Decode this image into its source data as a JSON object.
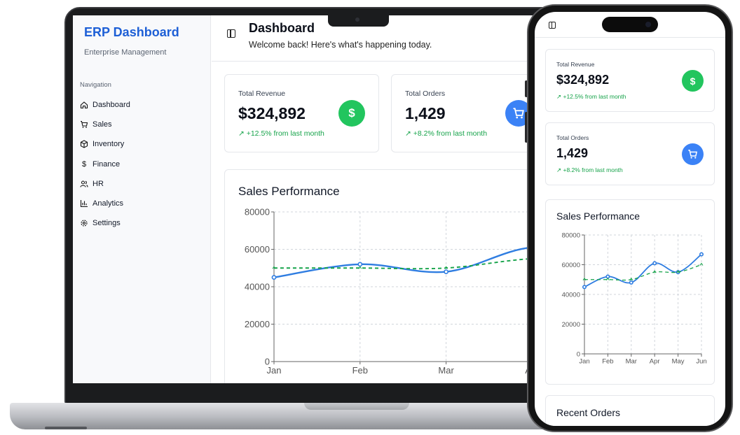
{
  "brand": {
    "title": "ERP Dashboard",
    "subtitle": "Enterprise Management"
  },
  "nav": {
    "heading": "Navigation",
    "items": [
      {
        "label": "Dashboard",
        "icon": "home-icon"
      },
      {
        "label": "Sales",
        "icon": "cart-icon"
      },
      {
        "label": "Inventory",
        "icon": "box-icon"
      },
      {
        "label": "Finance",
        "icon": "dollar-icon"
      },
      {
        "label": "HR",
        "icon": "users-icon"
      },
      {
        "label": "Analytics",
        "icon": "bar-chart-icon"
      },
      {
        "label": "Settings",
        "icon": "gear-icon"
      }
    ]
  },
  "header": {
    "title": "Dashboard",
    "subtitle": "Welcome back! Here's what's happening today."
  },
  "kpis": [
    {
      "label": "Total Revenue",
      "value": "$324,892",
      "trend": "↗ +12.5% from last month",
      "icon": "dollar-icon",
      "color": "#22c55e"
    },
    {
      "label": "Total Orders",
      "value": "1,429",
      "trend": "↗ +8.2% from last month",
      "icon": "cart-icon",
      "color": "#3b82f6"
    }
  ],
  "sales_chart": {
    "title": "Sales Performance"
  },
  "mobile": {
    "recent_orders_title": "Recent Orders"
  },
  "chart_data": {
    "type": "line",
    "title": "Sales Performance",
    "categories": [
      "Jan",
      "Feb",
      "Mar",
      "Apr",
      "May",
      "Jun"
    ],
    "ylim": [
      0,
      80000
    ],
    "yticks": [
      0,
      20000,
      40000,
      60000,
      80000
    ],
    "grid": true,
    "series": [
      {
        "values": [
          45000,
          52000,
          48000,
          61000,
          55000,
          67000
        ],
        "color": "#2f7de1",
        "style": "solid"
      },
      {
        "values": [
          50000,
          50000,
          50000,
          55000,
          55000,
          60000
        ],
        "color": "#16a34a",
        "style": "dashed"
      }
    ]
  }
}
